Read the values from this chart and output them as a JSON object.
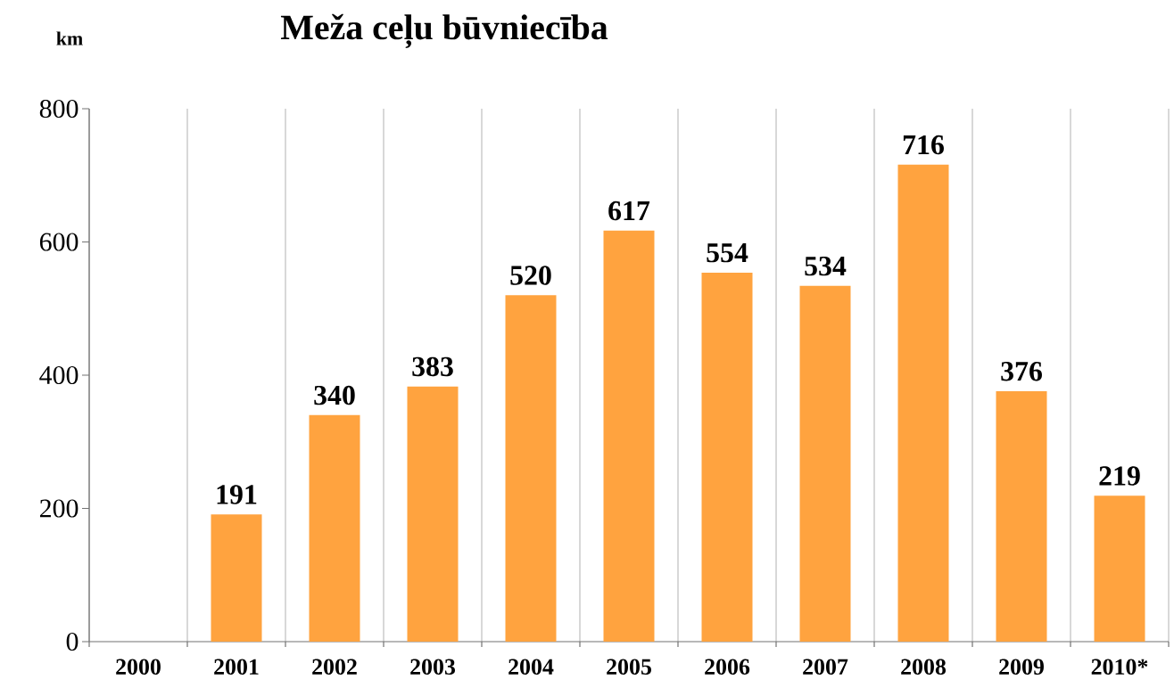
{
  "chart_data": {
    "type": "bar",
    "title": "Meža ceļu būvniecība",
    "ylabel": "km",
    "categories": [
      "2000",
      "2001",
      "2002",
      "2003",
      "2004",
      "2005",
      "2006",
      "2007",
      "2008",
      "2009",
      "2010*"
    ],
    "values": [
      null,
      191,
      340,
      383,
      520,
      617,
      554,
      534,
      716,
      376,
      219
    ],
    "color": "#ffa33f",
    "ylim": [
      0,
      800
    ],
    "yticks": [
      0,
      200,
      400,
      600,
      800
    ],
    "grid": "x",
    "data_labels": true
  }
}
